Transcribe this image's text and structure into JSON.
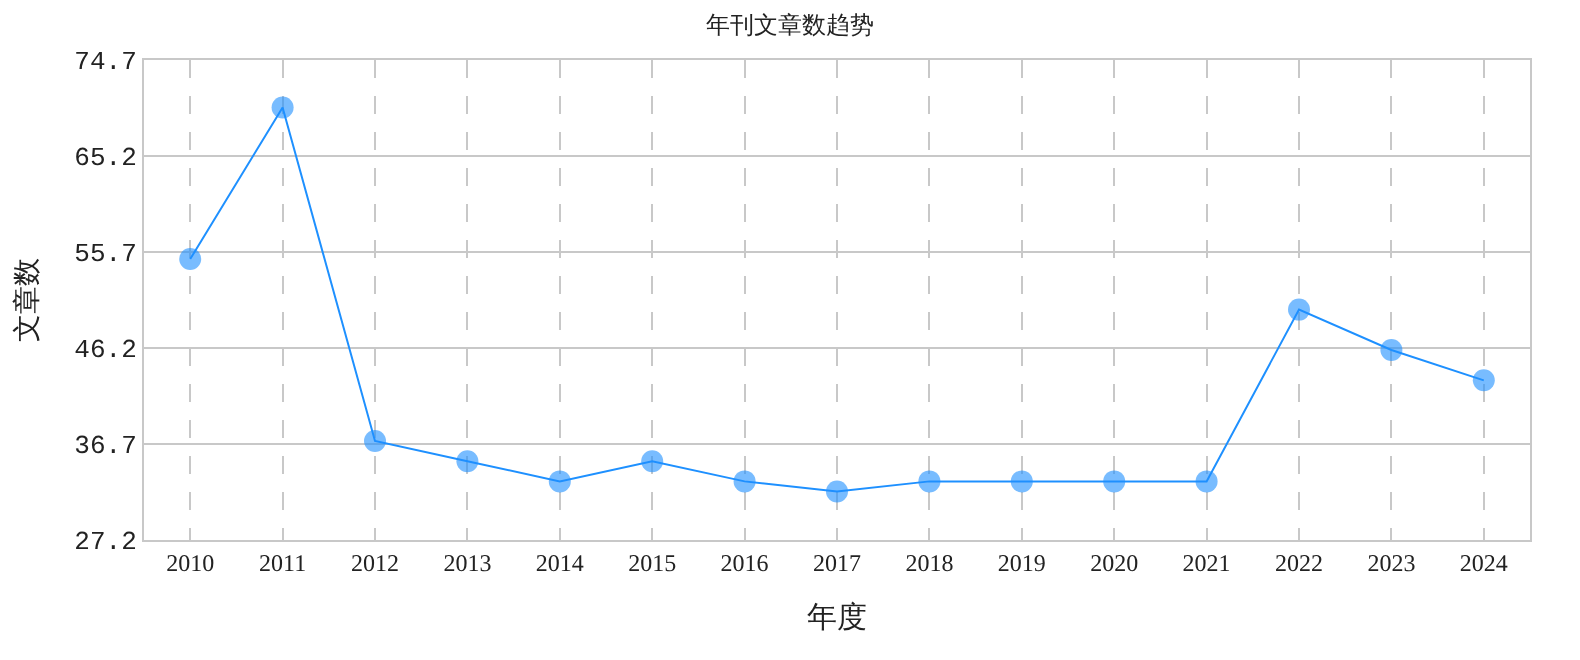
{
  "chart_data": {
    "type": "line",
    "title": "年刊文章数趋势",
    "xlabel": "年度",
    "ylabel": "文章数",
    "categories": [
      "2010",
      "2011",
      "2012",
      "2013",
      "2014",
      "2015",
      "2016",
      "2017",
      "2018",
      "2019",
      "2020",
      "2021",
      "2022",
      "2023",
      "2024"
    ],
    "series": [
      {
        "color": "#1e90ff",
        "values": [
          55,
          70,
          37,
          35,
          33,
          35,
          33,
          32,
          33,
          33,
          33,
          33,
          50,
          46,
          43
        ]
      }
    ],
    "ylim": [
      27.2,
      74.7
    ],
    "yticks": [
      27.2,
      36.7,
      46.2,
      55.7,
      65.2,
      74.7
    ],
    "grid": true,
    "marker": "circle",
    "line_style": "solid"
  }
}
